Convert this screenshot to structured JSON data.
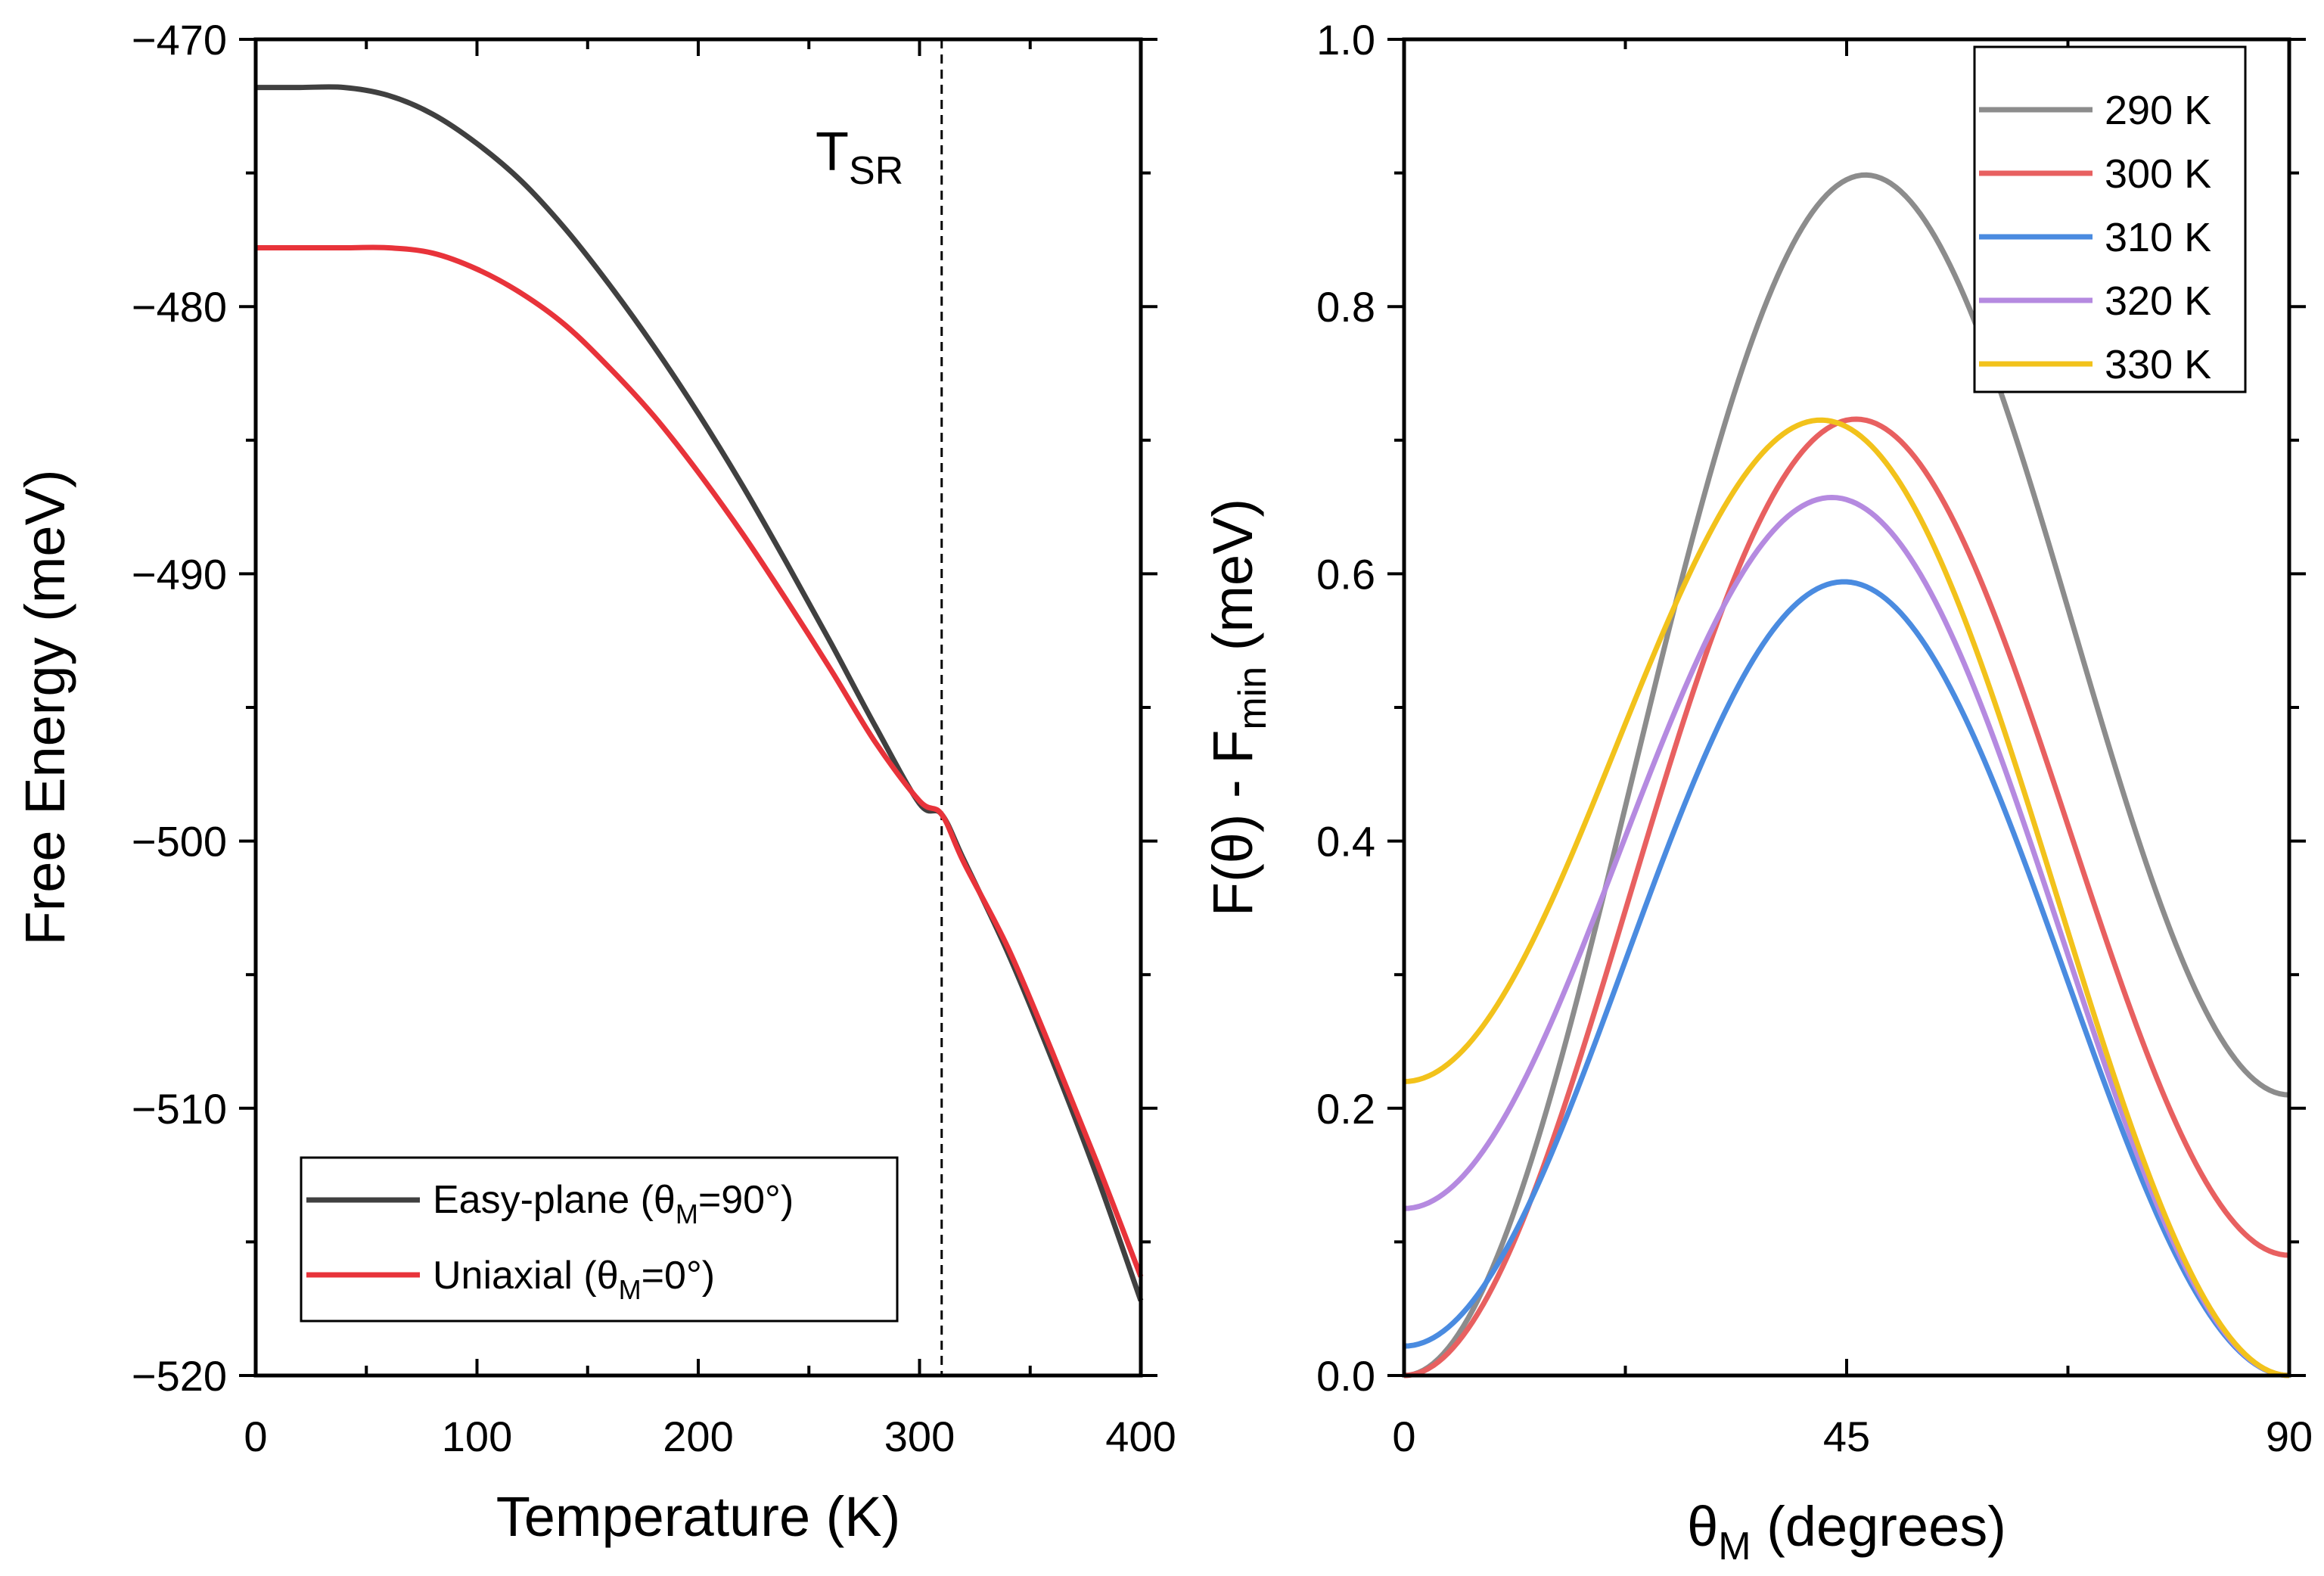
{
  "chart_data": [
    {
      "type": "line",
      "panel": "left",
      "xlabel": "Temperature (K)",
      "ylabel": "Free Energy (meV)",
      "xlim": [
        0,
        400
      ],
      "ylim": [
        -520,
        -470
      ],
      "xticks": [
        0,
        100,
        200,
        300,
        400
      ],
      "xtick_labels": [
        "0",
        "100",
        "200",
        "300",
        "400"
      ],
      "yticks": [
        -470,
        -480,
        -490,
        -500,
        -510,
        -520
      ],
      "ytick_labels": [
        "−470",
        "−480",
        "−490",
        "−500",
        "−510",
        "−520"
      ],
      "annotation": {
        "label": "T",
        "subscript": "SR",
        "x": 310,
        "style": "dashed-vertical-line"
      },
      "legend": {
        "position": "bottom-left",
        "entries": [
          {
            "prefix": "Easy-plane (",
            "theta": "θ",
            "sub": "M",
            "suffix": "=90°)",
            "color": "#404040"
          },
          {
            "prefix": "Uniaxial (",
            "theta": "θ",
            "sub": "M",
            "suffix": "=0°)",
            "color": "#e8333a"
          }
        ]
      },
      "series": [
        {
          "name": "Easy-plane (θM=90°)",
          "color": "#404040",
          "x": [
            0,
            20,
            40,
            60,
            80,
            100,
            120,
            140,
            160,
            180,
            200,
            220,
            240,
            260,
            280,
            300,
            310,
            320,
            340,
            360,
            380,
            400
          ],
          "y": [
            -471.8,
            -471.8,
            -471.8,
            -472.1,
            -472.8,
            -473.9,
            -475.3,
            -477.1,
            -479.2,
            -481.5,
            -484.0,
            -486.7,
            -489.6,
            -492.6,
            -495.7,
            -498.6,
            -499.0,
            -500.7,
            -504.2,
            -508.2,
            -512.5,
            -517.2
          ]
        },
        {
          "name": "Uniaxial (θM=0°)",
          "color": "#e8333a",
          "x": [
            0,
            20,
            40,
            60,
            80,
            100,
            120,
            140,
            160,
            180,
            200,
            220,
            240,
            260,
            280,
            300,
            310,
            320,
            340,
            360,
            380,
            400
          ],
          "y": [
            -477.8,
            -477.8,
            -477.8,
            -477.8,
            -478.0,
            -478.6,
            -479.5,
            -480.7,
            -482.3,
            -484.1,
            -486.2,
            -488.5,
            -491.0,
            -493.6,
            -496.3,
            -498.5,
            -499.0,
            -500.8,
            -504.0,
            -507.9,
            -512.0,
            -516.3
          ]
        }
      ]
    },
    {
      "type": "line",
      "panel": "right",
      "xlabel_symbol": "θ",
      "xlabel_sub": "M",
      "xlabel_rest": " (degrees)",
      "ylabel_prefix": "F(θ) - F",
      "ylabel_sub": "min",
      "ylabel_suffix": " (meV)",
      "xlim": [
        0,
        90
      ],
      "ylim": [
        0,
        1.0
      ],
      "xticks": [
        0,
        45,
        90
      ],
      "xtick_labels": [
        "0",
        "45",
        "90"
      ],
      "yticks": [
        0,
        0.2,
        0.4,
        0.6,
        0.8,
        1.0
      ],
      "ytick_labels": [
        "0.0",
        "0.2",
        "0.4",
        "0.6",
        "0.8",
        "1.0"
      ],
      "legend": {
        "position": "top-right"
      },
      "series": [
        {
          "name": "290 K",
          "color": "#8c8c8c",
          "A": 0.79,
          "B": 0.21,
          "C": 0.0
        },
        {
          "name": "300 K",
          "color": "#e86060",
          "A": 0.67,
          "B": 0.09,
          "C": 0.0
        },
        {
          "name": "310 K",
          "color": "#4a8be0",
          "A": 0.583,
          "B": 0.0,
          "C": 0.022
        },
        {
          "name": "320 K",
          "color": "#b58ae0",
          "A": 0.593,
          "B": 0.0,
          "C": 0.125
        },
        {
          "name": "330 K",
          "color": "#f2c21b",
          "A": 0.6,
          "B": 0.0,
          "C": 0.22
        }
      ]
    }
  ]
}
